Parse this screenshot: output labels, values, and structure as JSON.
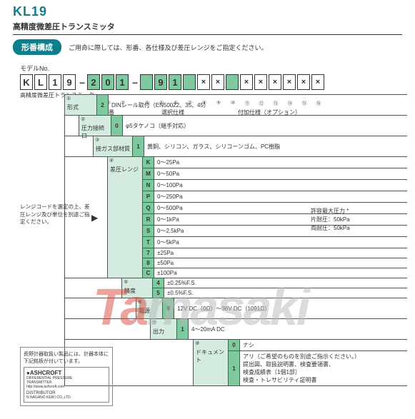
{
  "hdr": {
    "title": "KL19",
    "subtitle": "高精度微差圧トランスミッタ"
  },
  "section": {
    "tab": "形番構成",
    "note": "ご用命に際しては、形番、各仕様及び差圧レンジをご指定ください。"
  },
  "model": {
    "label": "モデルNo.",
    "boxes": [
      "K",
      "L",
      "1",
      "9"
    ],
    "g1": [
      "2",
      "0",
      "1"
    ],
    "g2": [
      "9",
      "1"
    ],
    "sublabel": "高精度微差圧トランスミッタ",
    "nums": [
      "①",
      "②",
      "③",
      "④",
      "⑤",
      "⑥",
      "⑦",
      "⑧",
      "⑨",
      "⑩",
      "⑪",
      "⑫",
      "⑬",
      "⑭",
      "⑮",
      "⑯"
    ],
    "ul": {
      "a": "形番",
      "b": "選択仕様",
      "c": "付加仕様（オプション）"
    }
  },
  "rows": {
    "r1": {
      "idx": "①",
      "lbl": "形式",
      "code": "2",
      "desc": "DINレール取付（EN50022、35、45）"
    },
    "r2": {
      "idx": "②",
      "lbl": "圧力接続口",
      "code": "0",
      "desc": "φ5タケノコ（継手対応）"
    },
    "r3": {
      "idx": "③",
      "lbl": "接ガス部材質",
      "code": "1",
      "desc": "黄銅、シリコン、ガラス、シリコーンゴム、PC樹脂"
    },
    "r4": {
      "idx": "④",
      "lbl": "差圧レンジ",
      "items": [
        {
          "c": "K",
          "d": "0～25Pa"
        },
        {
          "c": "M",
          "d": "0～50Pa"
        },
        {
          "c": "N",
          "d": "0～100Pa"
        },
        {
          "c": "P",
          "d": "0～250Pa"
        },
        {
          "c": "Q",
          "d": "0～500Pa"
        },
        {
          "c": "R",
          "d": "0～1kPa"
        },
        {
          "c": "S",
          "d": "0～2.5kPa"
        },
        {
          "c": "T",
          "d": "0～5kPa"
        },
        {
          "c": "7",
          "d": "±25Pa"
        },
        {
          "c": "8",
          "d": "±50Pa"
        },
        {
          "c": "C",
          "d": "±100Pa"
        }
      ]
    },
    "r5": {
      "idx": "⑤",
      "lbl": "精度",
      "items": [
        {
          "c": "4",
          "d": "±0.25%F.S."
        },
        {
          "c": "5",
          "d": "±0.5%F.S."
        }
      ]
    },
    "r6": {
      "idx": "⑥",
      "lbl": "電源",
      "code": "9",
      "desc": "12V DC（0Ω）～36V DC（1091Ω）"
    },
    "r7": {
      "idx": "⑦",
      "lbl": "出力",
      "code": "1",
      "desc": "4～20mA DC"
    },
    "r8": {
      "idx": "⑩",
      "lbl": "ドキュメント",
      "items": [
        {
          "c": "0",
          "d": "ナシ"
        },
        {
          "c": "1",
          "d": "アリ（ご希望のものを別途ご指示ください。）\n提出図、取扱説明書、検査要領書、\n検査成績表（1個1部）\n検査・トレサビリティ証明書"
        }
      ]
    }
  },
  "notebox": "レンジコードを選定の上、差圧レンジ及び単位を別途ご指定ください。",
  "pressure": {
    "a": "許容最大圧力 *",
    "b": "片耐圧：50kPa",
    "c": "両耐圧：50kPa"
  },
  "footer": {
    "top": "長野計器取扱い製品には、計器本体に下記銘板が付いています。",
    "brand": "●ASHCROFT",
    "sub": "DIFFERENTIAL PRESSURE\nTRANSMITTER",
    "url": "http://www.ashcroft.com",
    "dist": "DISTRIBUTOR",
    "co": "N NAGANO KEIKI CO.,LTD."
  },
  "wm": {
    "a": "Ta",
    "b": "masaki"
  }
}
